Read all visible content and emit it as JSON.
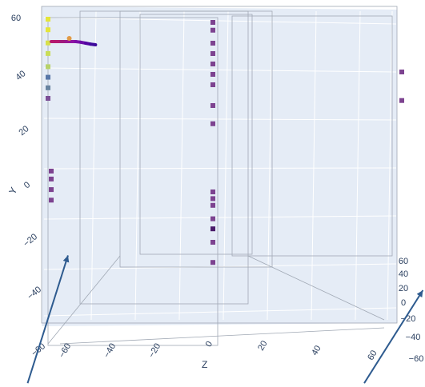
{
  "chart_data": {
    "type": "scatter3d",
    "title": "",
    "grid": true,
    "legend": "none",
    "axes": {
      "y": {
        "title": "Y",
        "range": [
          -65,
          65
        ],
        "ticks": [
          "60",
          "40",
          "20",
          "0",
          "−20",
          "−40",
          "−60"
        ]
      },
      "z": {
        "title": "Z",
        "range": [
          -70,
          65
        ],
        "ticks": [
          "−60",
          "−40",
          "−20",
          "0",
          "20",
          "40",
          "60"
        ]
      },
      "x": {
        "title": "",
        "range": [
          -65,
          65
        ],
        "ticks": [
          "60",
          "40",
          "20",
          "0",
          "−20",
          "−40",
          "−60"
        ]
      }
    },
    "colorscale": [
      "#0d0887",
      "#5c01a6",
      "#9c179e",
      "#cc4778",
      "#ed7953",
      "#fdb42f",
      "#f0f921"
    ],
    "series": [
      {
        "marker": "square",
        "z": [
          -66,
          -66,
          -66,
          -66,
          -66,
          -66,
          -66,
          -66,
          -65,
          -65,
          -65,
          -65
        ],
        "y": [
          60,
          56,
          51,
          47,
          42,
          38,
          34,
          30,
          1,
          -2,
          -6,
          -10
        ],
        "colors": [
          "#e4e53a",
          "#e4e53a",
          "#d7e04a",
          "#c9dd58",
          "#b7d26a",
          "#5877a8",
          "#6883a0",
          "#7c4f97",
          "#7d4390",
          "#7d4390",
          "#7d4390",
          "#7d4390"
        ]
      },
      {
        "marker": "square",
        "z": [
          0,
          0,
          0,
          0,
          0,
          0,
          0,
          0,
          0,
          0,
          0,
          0,
          0,
          0,
          0,
          0
        ],
        "y": [
          60,
          57,
          52,
          48,
          44,
          40,
          36,
          28,
          21,
          2,
          -2,
          -6,
          -9,
          -13,
          -19,
          0
        ],
        "colors": [
          "#7d4390",
          "#7d4390",
          "#7d4390",
          "#7d4390",
          "#7d4390",
          "#7d4390",
          "#7d4390",
          "#7d4390",
          "#7d4390",
          "#7d4390",
          "#7d4390",
          "#7d4390",
          "#4a1a6a",
          "#7d4390",
          "#7d4390",
          "#7d4390"
        ]
      },
      {
        "marker": "square",
        "z": [
          60,
          60
        ],
        "y": [
          45,
          38
        ],
        "colors": [
          "#7d4390",
          "#7d4390"
        ]
      }
    ],
    "trajectory": {
      "z": [
        -63,
        -60,
        -57,
        -54,
        -51,
        -48,
        -45,
        -42,
        -39,
        -36
      ],
      "y": [
        52,
        52,
        52,
        52,
        52,
        52,
        51.8,
        51.5,
        51.2,
        51
      ],
      "colors": [
        "#b5196e",
        "#b5196e",
        "#a01a7c",
        "#9a178f",
        "#8e14a3",
        "#7b10a8",
        "#6a0ba7",
        "#5303a1",
        "#3e0a9c",
        "#2e0a94"
      ],
      "highlight": {
        "z": -52,
        "y": 53,
        "color": "#e19a46"
      }
    },
    "vectors": [
      {
        "from": [
          0.065,
          0.99
        ],
        "to": [
          0.16,
          0.66
        ],
        "color": "#2e5b8f"
      },
      {
        "from": [
          0.857,
          0.99
        ],
        "to": [
          0.995,
          0.75
        ],
        "color": "#2e5b8f"
      }
    ]
  }
}
